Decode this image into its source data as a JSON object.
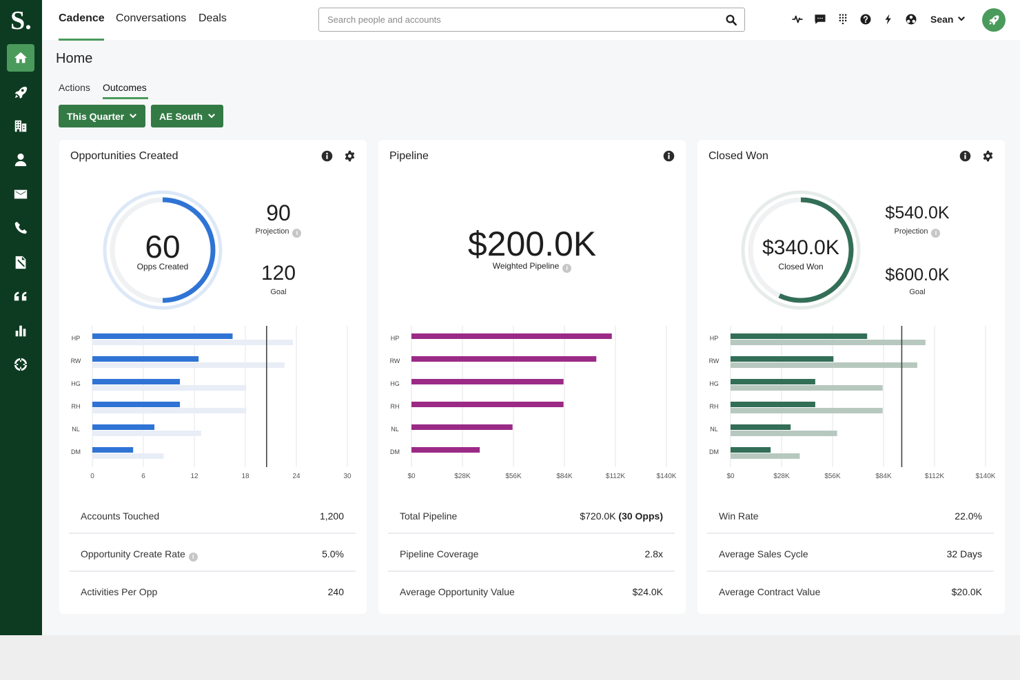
{
  "logo": "S.",
  "sidebar": {
    "items": [
      {
        "name": "home-icon",
        "active": true
      },
      {
        "name": "rocket-icon",
        "active": false
      },
      {
        "name": "building-icon",
        "active": false
      },
      {
        "name": "person-icon",
        "active": false
      },
      {
        "name": "mail-icon",
        "active": false
      },
      {
        "name": "phone-icon",
        "active": false
      },
      {
        "name": "document-icon",
        "active": false
      },
      {
        "name": "quote-icon",
        "active": false
      },
      {
        "name": "bar-chart-icon",
        "active": false
      },
      {
        "name": "crosshair-icon",
        "active": false
      }
    ]
  },
  "topnav": {
    "items": [
      "Cadence",
      "Conversations",
      "Deals"
    ],
    "active": "Cadence"
  },
  "search": {
    "placeholder": "Search people and accounts",
    "value": ""
  },
  "header_icons": [
    "activity-icon",
    "chat-icon",
    "apps-grid-icon",
    "help-icon",
    "lightning-icon",
    "integrations-icon"
  ],
  "user": {
    "name": "Sean"
  },
  "page": {
    "title": "Home",
    "tabs": [
      "Actions",
      "Outcomes"
    ],
    "active_tab": "Outcomes",
    "filters": [
      "This Quarter",
      "AE South"
    ]
  },
  "colors": {
    "brand_green": "#347a45",
    "accent_green": "#4a9a5c",
    "sidebar_bg": "#0d3b22",
    "opps_blue": "#2f74d5",
    "pipeline_purple": "#9b2a86",
    "closed_green": "#336e57"
  },
  "cards": [
    {
      "title": "Opportunities Created",
      "donut": {
        "value": "60",
        "label": "Opps Created",
        "progress": 0.5
      },
      "projection": {
        "value": "90",
        "label": "Projection"
      },
      "goal": {
        "value": "120",
        "label": "Goal"
      },
      "metrics": [
        {
          "label": "Accounts Touched",
          "value": "1,200"
        },
        {
          "label": "Opportunity Create Rate",
          "value": "5.0%",
          "help": true
        },
        {
          "label": "Activities Per Opp",
          "value": "240"
        }
      ]
    },
    {
      "title": "Pipeline",
      "big": {
        "value": "$200.0K",
        "label": "Weighted Pipeline"
      },
      "metrics": [
        {
          "label": "Total Pipeline",
          "value": "$720.0K",
          "value_bold": "(30 Opps)"
        },
        {
          "label": "Pipeline Coverage",
          "value": "2.8x"
        },
        {
          "label": "Average Opportunity Value",
          "value": "$24.0K"
        }
      ]
    },
    {
      "title": "Closed Won",
      "donut": {
        "value": "$340.0K",
        "label": "Closed Won",
        "progress": 0.57
      },
      "projection": {
        "value": "$540.0K",
        "label": "Projection"
      },
      "goal": {
        "value": "$600.0K",
        "label": "Goal"
      },
      "metrics": [
        {
          "label": "Win Rate",
          "value": "22.0%"
        },
        {
          "label": "Average Sales Cycle",
          "value": "32 Days"
        },
        {
          "label": "Average Contract Value",
          "value": "$20.0K"
        }
      ]
    }
  ],
  "chart_data": [
    {
      "type": "bar",
      "orientation": "horizontal",
      "categories": [
        "HP",
        "RW",
        "HG",
        "RH",
        "NL",
        "DM"
      ],
      "series": [
        {
          "values": [
            16.5,
            12.5,
            10.3,
            10.3,
            7.3,
            4.8
          ]
        },
        {
          "values": [
            23.6,
            22.6,
            18.1,
            18.1,
            12.8,
            8.4
          ]
        }
      ],
      "reference_line": 20.5,
      "xticks": [
        "0",
        "6",
        "12",
        "18",
        "24",
        "30"
      ],
      "xlim": [
        0,
        30
      ]
    },
    {
      "type": "bar",
      "orientation": "horizontal",
      "categories": [
        "HP",
        "RW",
        "HG",
        "RH",
        "NL",
        "DM"
      ],
      "series": [
        {
          "values": [
            110,
            101.5,
            83.5,
            83.5,
            55.5,
            37.5
          ]
        }
      ],
      "xticks": [
        "$0",
        "$28K",
        "$56K",
        "$84K",
        "$112K",
        "$140K"
      ],
      "xlim": [
        0,
        140
      ]
    },
    {
      "type": "bar",
      "orientation": "horizontal",
      "categories": [
        "HP",
        "RW",
        "HG",
        "RH",
        "NL",
        "DM"
      ],
      "series": [
        {
          "values": [
            75,
            56.5,
            46.5,
            46.5,
            33,
            22
          ]
        },
        {
          "values": [
            107,
            102.5,
            83.5,
            83.5,
            58.5,
            38
          ]
        }
      ],
      "reference_line": 94,
      "xticks": [
        "$0",
        "$28K",
        "$56K",
        "$84K",
        "$112K",
        "$140K"
      ],
      "xlim": [
        0,
        140
      ]
    }
  ]
}
